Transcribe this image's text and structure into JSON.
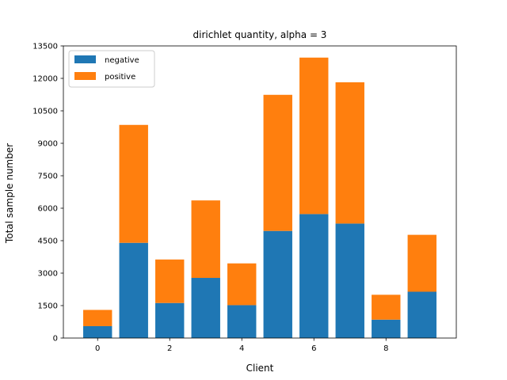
{
  "chart_data": {
    "type": "bar",
    "stacked": true,
    "title": "dirichlet quantity, alpha = 3",
    "xlabel": "Client",
    "ylabel": "Total sample number",
    "categories": [
      0,
      1,
      2,
      3,
      4,
      5,
      6,
      7,
      8,
      9
    ],
    "series": [
      {
        "name": "negative",
        "color": "#1f77b4",
        "values": [
          550,
          4400,
          1620,
          2780,
          1520,
          4950,
          5730,
          5290,
          850,
          2140
        ]
      },
      {
        "name": "positive",
        "color": "#ff7f0e",
        "values": [
          750,
          5450,
          2010,
          3580,
          1930,
          6290,
          7230,
          6530,
          1150,
          2630
        ]
      }
    ],
    "xlim": [
      -0.95,
      9.95
    ],
    "ylim": [
      0,
      13500
    ],
    "xticks": [
      0,
      2,
      4,
      6,
      8
    ],
    "yticks": [
      0,
      1500,
      3000,
      4500,
      6000,
      7500,
      9000,
      10500,
      12000,
      13500
    ],
    "legend": "top-left",
    "grid": false
  }
}
